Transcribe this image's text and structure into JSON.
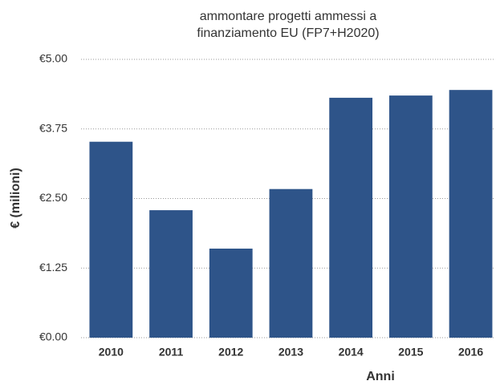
{
  "chart_data": {
    "type": "bar",
    "title": "ammontare progetti ammessi a finanziamento EU (FP7+H2020)",
    "x_label": "Anni",
    "y_label": "€ (milioni)",
    "categories": [
      "2010",
      "2011",
      "2012",
      "2013",
      "2014",
      "2015",
      "2016"
    ],
    "values": [
      3.52,
      2.29,
      1.6,
      2.67,
      4.31,
      4.35,
      4.45
    ],
    "color": "#2e5489",
    "ylim": [
      0,
      5
    ],
    "yticks": [
      {
        "value": 0,
        "label": "€0.00"
      },
      {
        "value": 1.25,
        "label": "€1.25"
      },
      {
        "value": 2.5,
        "label": "€2.50"
      },
      {
        "value": 3.75,
        "label": "€3.75"
      },
      {
        "value": 5,
        "label": "€5.00"
      }
    ],
    "grid": true
  }
}
